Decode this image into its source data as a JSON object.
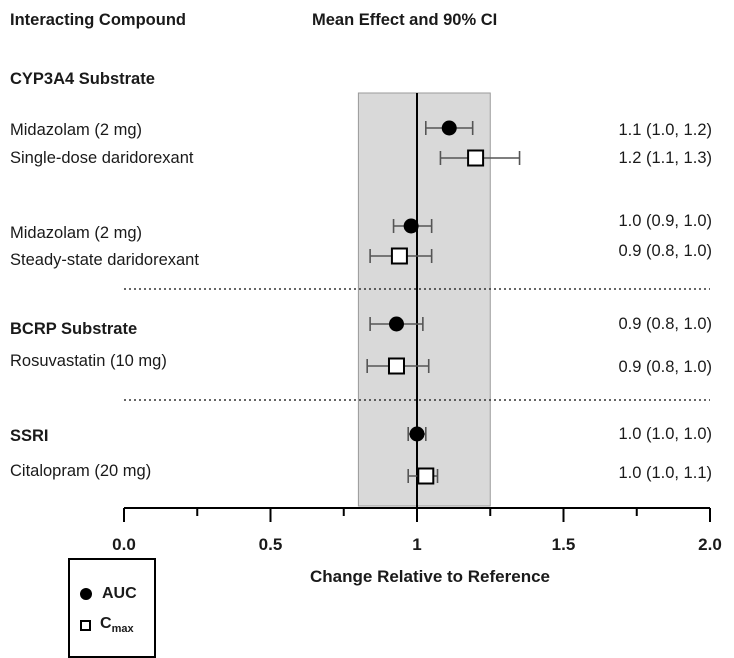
{
  "headers": {
    "compound": "Interacting Compound",
    "effect": "Mean Effect and 90% CI"
  },
  "rows": [
    {
      "label": "CYP3A4 Substrate",
      "group": true
    },
    {
      "label": "Midazolam (2 mg)",
      "ci": "1.1 (1.0, 1.2)",
      "metric": "AUC",
      "mean": 1.11,
      "lo": 1.03,
      "hi": 1.19
    },
    {
      "label": "Single-dose daridorexant",
      "ci": "1.2 (1.1, 1.3)",
      "metric": "Cmax",
      "mean": 1.2,
      "lo": 1.08,
      "hi": 1.35
    },
    {
      "label": "Midazolam (2 mg)",
      "ci": "1.0 (0.9, 1.0)",
      "metric": "AUC",
      "mean": 0.98,
      "lo": 0.92,
      "hi": 1.05
    },
    {
      "label": "Steady-state daridorexant",
      "ci": "0.9 (0.8, 1.0)",
      "metric": "Cmax",
      "mean": 0.94,
      "lo": 0.84,
      "hi": 1.05
    },
    {
      "label": "BCRP Substrate",
      "group": true,
      "ci": "0.9 (0.8, 1.0)",
      "metric": "AUC",
      "mean": 0.93,
      "lo": 0.84,
      "hi": 1.02
    },
    {
      "label": "Rosuvastatin (10 mg)",
      "ci": "0.9 (0.8, 1.0)",
      "metric": "Cmax",
      "mean": 0.93,
      "lo": 0.83,
      "hi": 1.04
    },
    {
      "label": "SSRI",
      "group": true,
      "ci": "1.0 (1.0, 1.0)",
      "metric": "AUC",
      "mean": 1.0,
      "lo": 0.97,
      "hi": 1.03
    },
    {
      "label": "Citalopram (20 mg)",
      "ci": "1.0 (1.0, 1.1)",
      "metric": "Cmax",
      "mean": 1.03,
      "lo": 0.97,
      "hi": 1.07
    }
  ],
  "chart_data": {
    "type": "scatter",
    "title": "Mean Effect and 90% CI",
    "xlabel": "Change Relative to Reference",
    "xlim": [
      0.0,
      2.0
    ],
    "xticks": [
      "0.0",
      "0.5",
      "1",
      "1.5",
      "2.0"
    ],
    "reference_line": 1.0,
    "shaded_band": [
      0.8,
      1.25
    ],
    "series": [
      {
        "name": "AUC",
        "marker": "filled-circle",
        "points": [
          {
            "row": "Midazolam (2 mg) / Single-dose daridorexant",
            "mean": 1.11,
            "lo": 1.03,
            "hi": 1.19
          },
          {
            "row": "Midazolam (2 mg) / Steady-state daridorexant",
            "mean": 0.98,
            "lo": 0.92,
            "hi": 1.05
          },
          {
            "row": "Rosuvastatin (10 mg)",
            "mean": 0.93,
            "lo": 0.84,
            "hi": 1.02
          },
          {
            "row": "Citalopram (20 mg)",
            "mean": 1.0,
            "lo": 0.97,
            "hi": 1.03
          }
        ]
      },
      {
        "name": "Cmax",
        "marker": "open-square",
        "points": [
          {
            "row": "Midazolam (2 mg) / Single-dose daridorexant",
            "mean": 1.2,
            "lo": 1.08,
            "hi": 1.35
          },
          {
            "row": "Midazolam (2 mg) / Steady-state daridorexant",
            "mean": 0.94,
            "lo": 0.84,
            "hi": 1.05
          },
          {
            "row": "Rosuvastatin (10 mg)",
            "mean": 0.93,
            "lo": 0.83,
            "hi": 1.04
          },
          {
            "row": "Citalopram (20 mg)",
            "mean": 1.03,
            "lo": 0.97,
            "hi": 1.07
          }
        ]
      }
    ]
  },
  "legend": {
    "auc": "AUC",
    "cmax_main": "C",
    "cmax_sub": "max"
  },
  "colors": {
    "band": "#d9d9d9",
    "ink": "#000000",
    "errorbar": "#555555"
  }
}
